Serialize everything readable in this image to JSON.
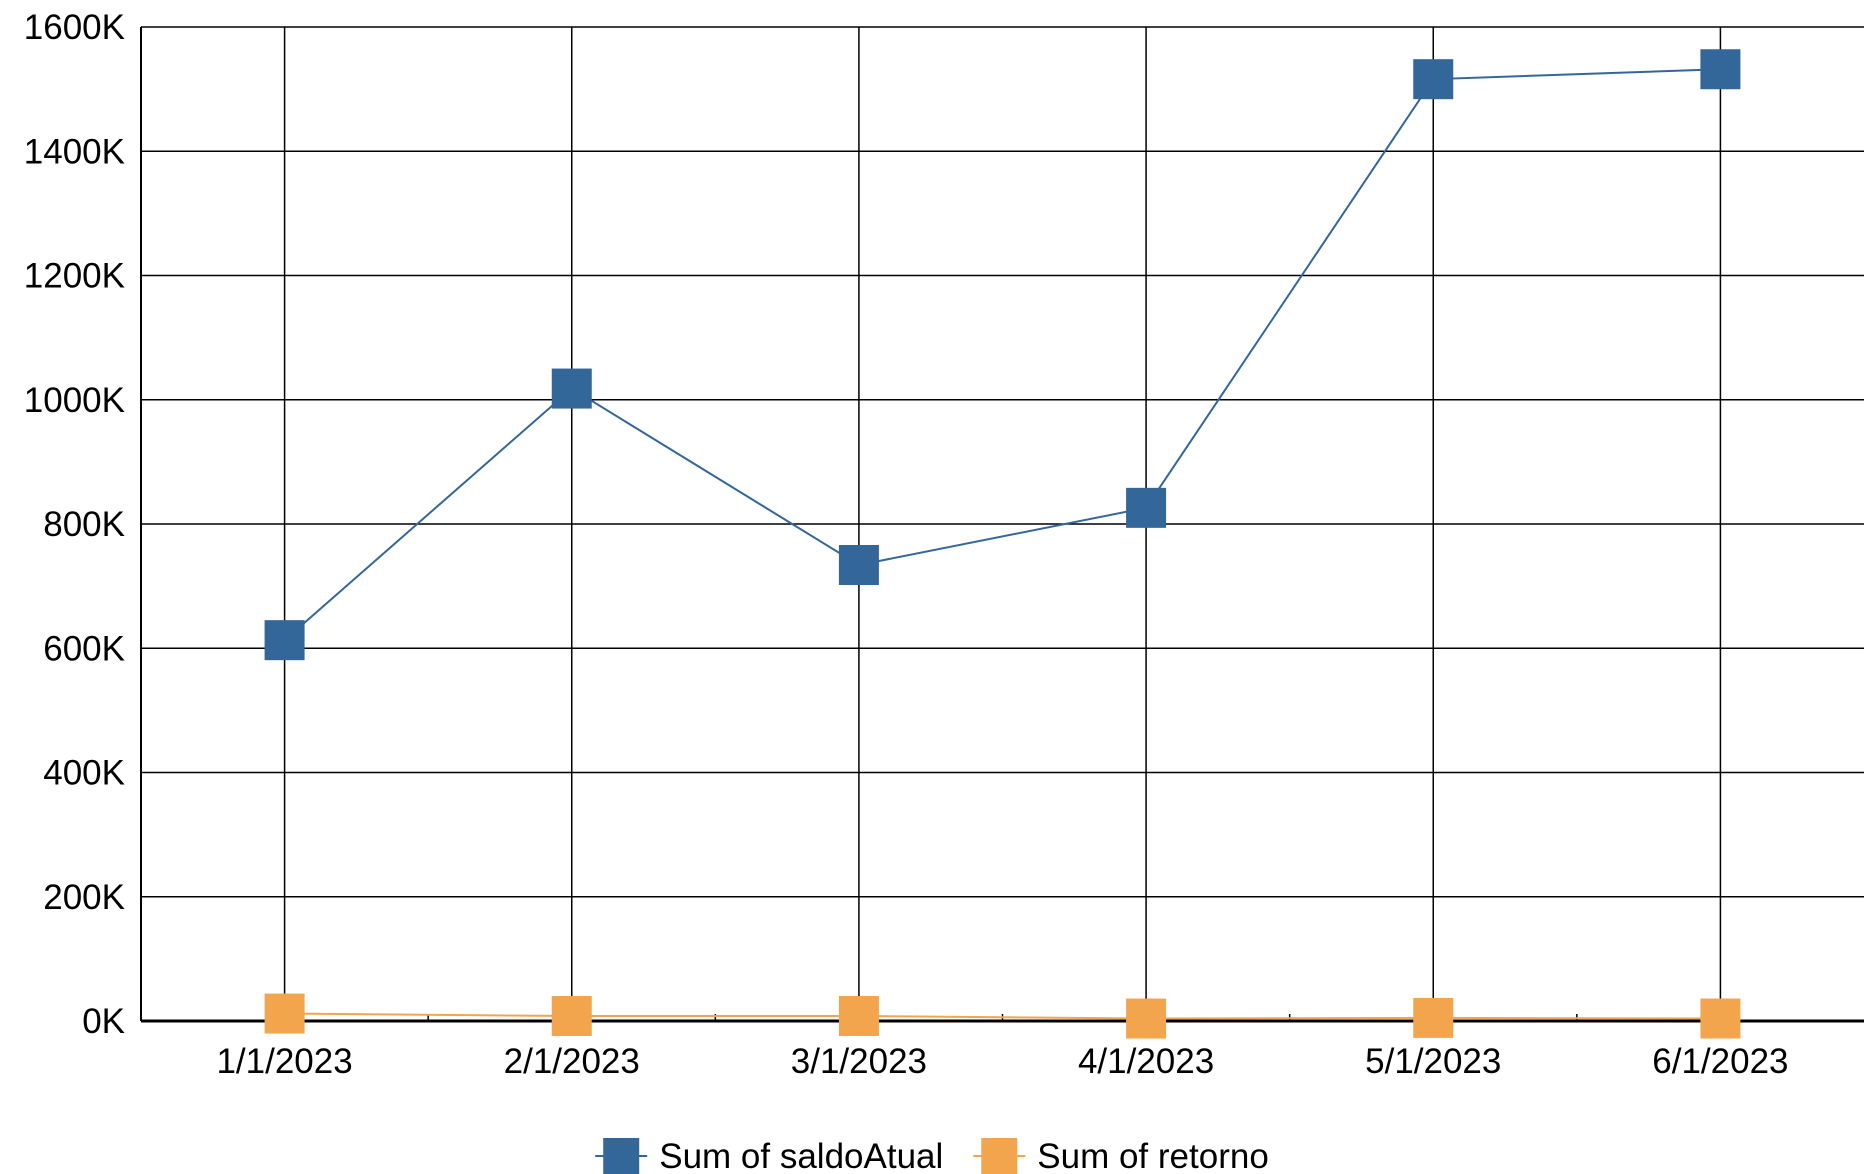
{
  "chart_data": {
    "type": "line",
    "title": "",
    "xlabel": "",
    "ylabel": "",
    "categories": [
      "1/1/2023",
      "2/1/2023",
      "3/1/2023",
      "4/1/2023",
      "5/1/2023",
      "6/1/2023"
    ],
    "ylim": [
      0,
      1600
    ],
    "y_ticks": [
      0,
      200,
      400,
      600,
      800,
      1000,
      1200,
      1400,
      1600
    ],
    "y_tick_labels": [
      "0K",
      "200K",
      "400K",
      "600K",
      "800K",
      "1000K",
      "1200K",
      "1400K",
      "1600K"
    ],
    "grid": true,
    "legend_position": "bottom",
    "series": [
      {
        "name": "Sum of saldoAtual",
        "color": "#336699",
        "marker": "square",
        "values": [
          613,
          1018,
          734,
          826,
          1516,
          1532
        ]
      },
      {
        "name": "Sum of retorno",
        "color": "#f2a54d",
        "marker": "square",
        "values": [
          12,
          8,
          8,
          4,
          5,
          4
        ]
      }
    ]
  }
}
